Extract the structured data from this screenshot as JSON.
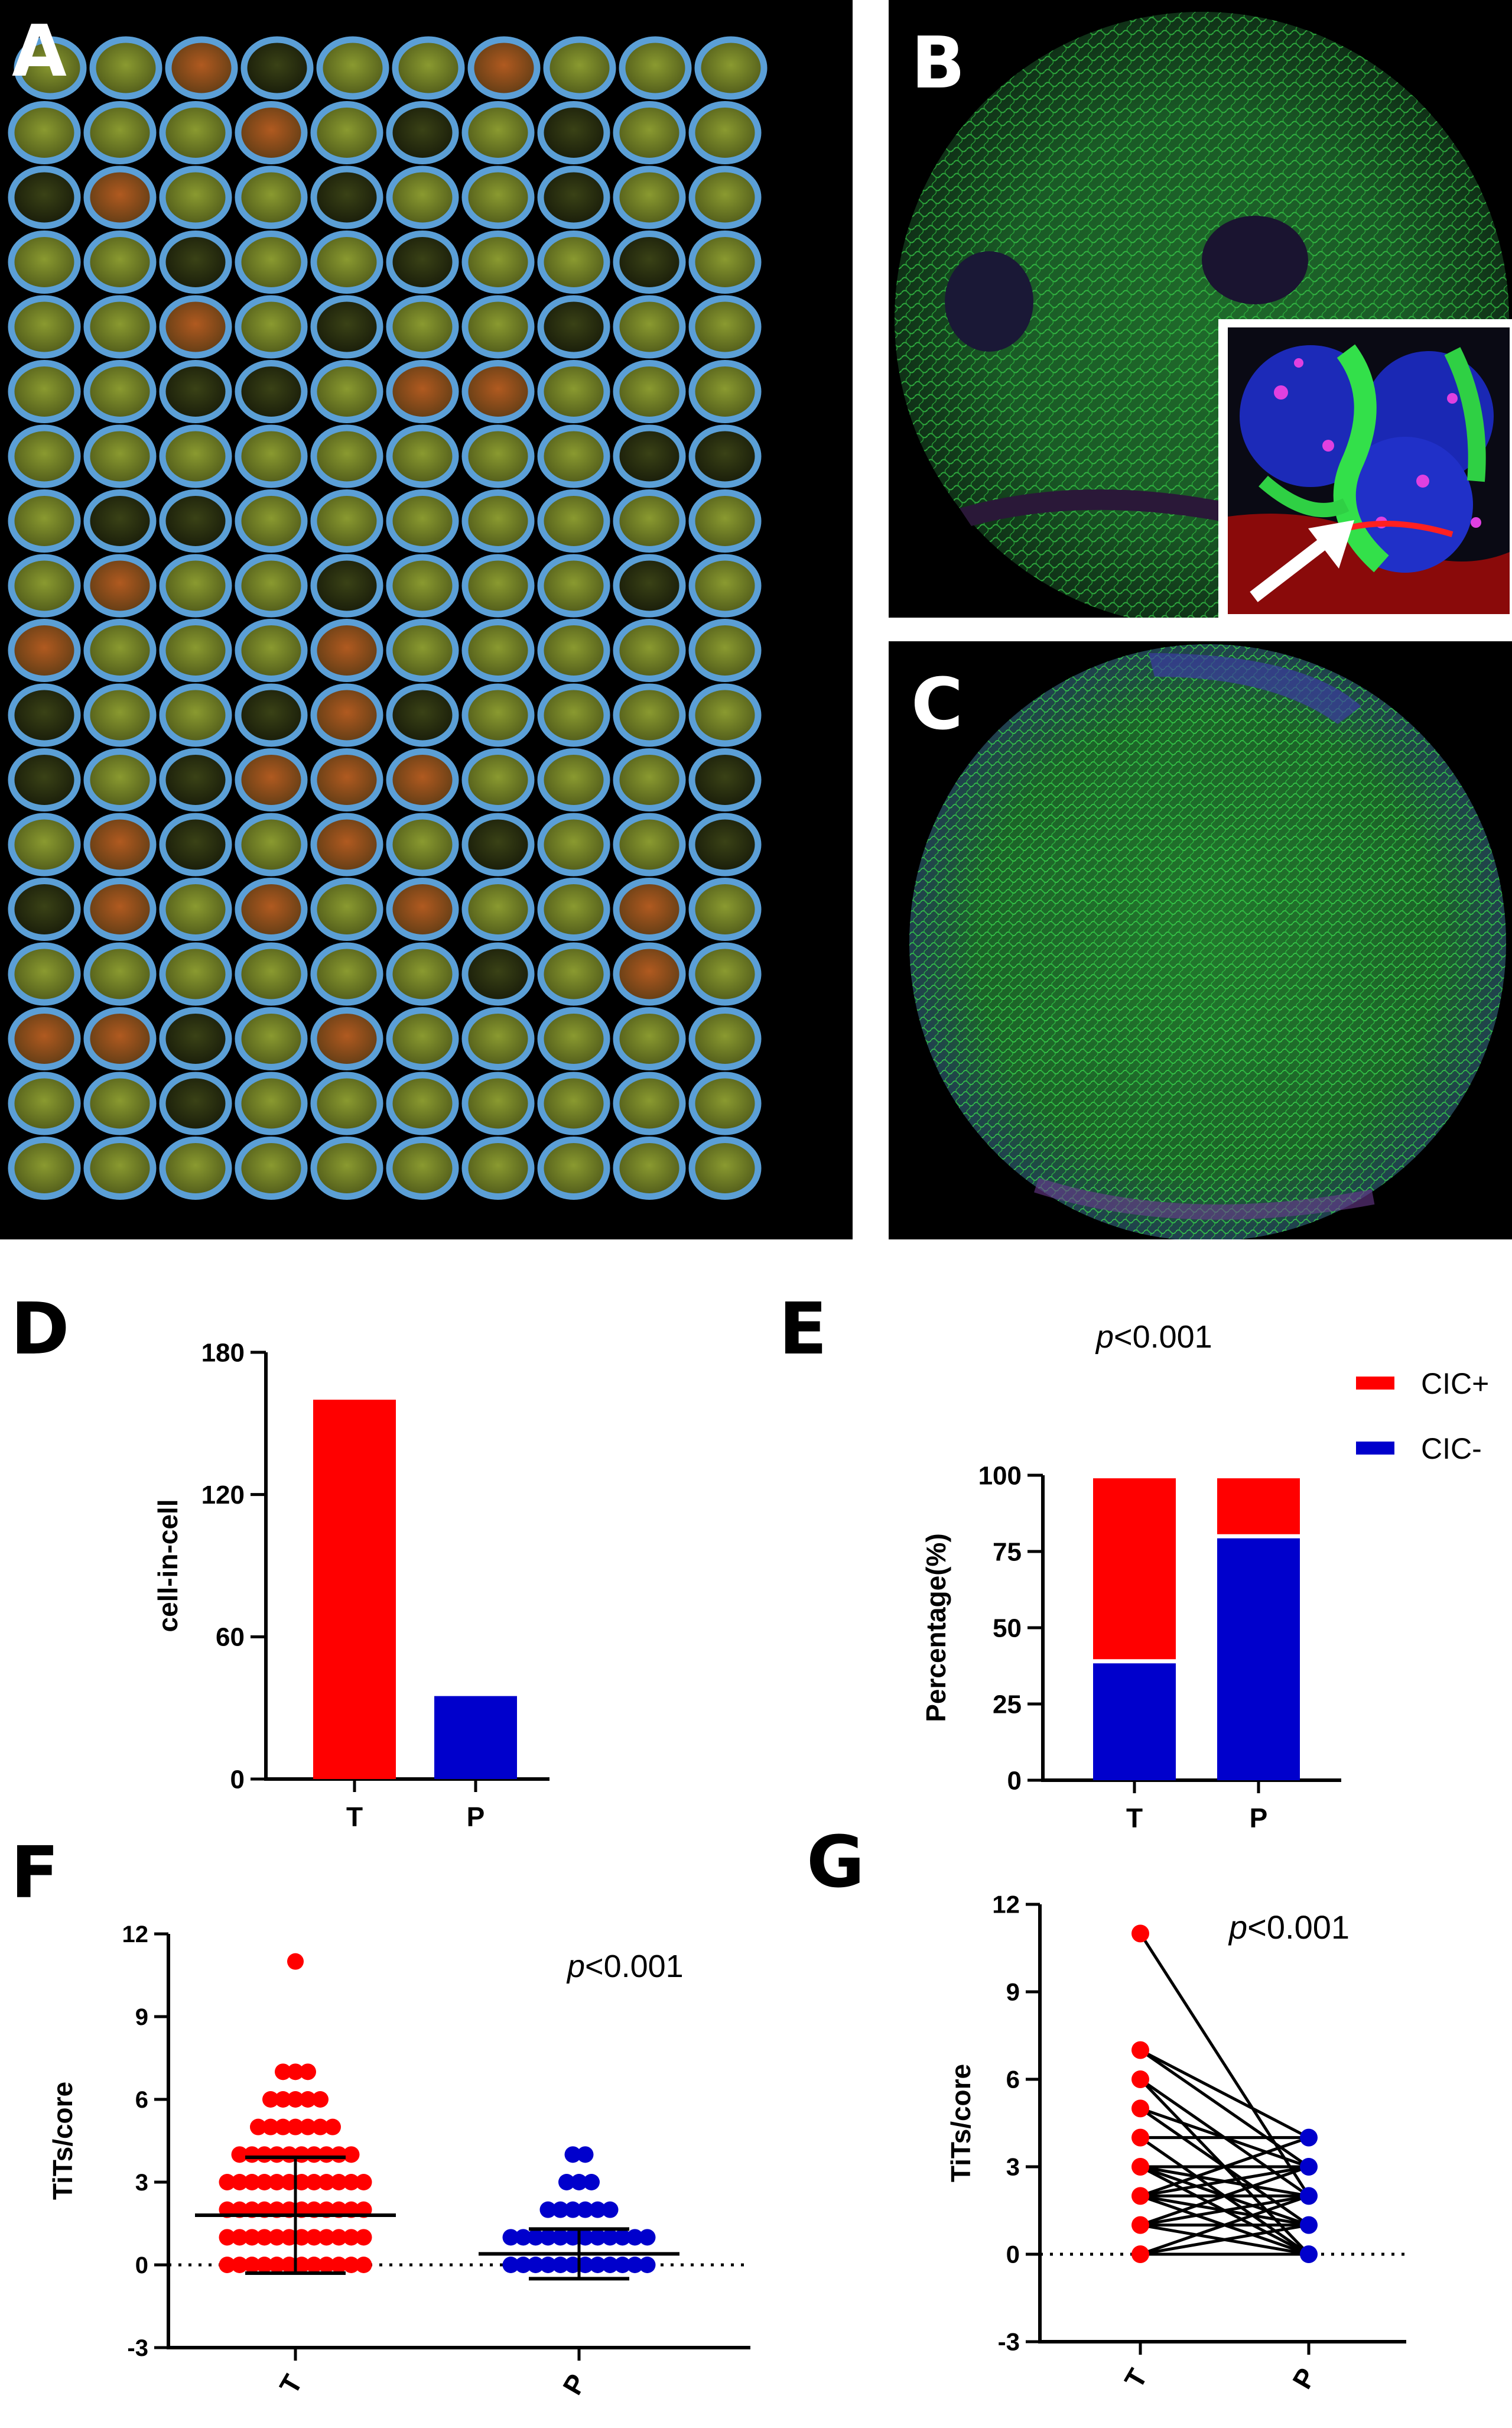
{
  "panels": {
    "a": {
      "letter": "A"
    },
    "b": {
      "letter": "B"
    },
    "c": {
      "letter": "C"
    },
    "d": {
      "letter": "D"
    },
    "e": {
      "letter": "E"
    },
    "f": {
      "letter": "F"
    },
    "g": {
      "letter": "G"
    }
  },
  "tma": {
    "rows": 18,
    "cols": 10,
    "ring_color": "#5b9fd6"
  },
  "chart_data": [
    {
      "panel": "D",
      "type": "bar",
      "categories": [
        "T",
        "P"
      ],
      "values": [
        160,
        35
      ],
      "colors": [
        "#ff0000",
        "#0000cc"
      ],
      "ylabel": "cell-in-cell",
      "ylim": [
        0,
        180
      ],
      "yticks": [
        "0",
        "60",
        "120",
        "180"
      ],
      "grid": false
    },
    {
      "panel": "E",
      "type": "bar",
      "stacked": true,
      "categories": [
        "T",
        "P"
      ],
      "series": [
        {
          "name": "CIC-",
          "values": [
            39,
            80
          ],
          "color": "#0000cc"
        },
        {
          "name": "CIC+",
          "values": [
            60,
            19
          ],
          "color": "#ff0000"
        }
      ],
      "ylabel": "Percentage(%)",
      "ylim": [
        0,
        100
      ],
      "yticks": [
        "0",
        "25",
        "50",
        "75",
        "100"
      ],
      "annotation": {
        "italic": "p",
        "rest": "<0.001"
      },
      "legend": [
        {
          "label": "CIC+",
          "color": "#ff0000"
        },
        {
          "label": "CIC-",
          "color": "#0000cc"
        }
      ],
      "legend_position": "right"
    },
    {
      "panel": "F",
      "type": "scatter",
      "categories": [
        "T",
        "P"
      ],
      "ylabel": "TiTs/core",
      "ylim": [
        -3,
        12
      ],
      "yticks": [
        "-3",
        "0",
        "3",
        "6",
        "9",
        "12"
      ],
      "annotation": {
        "italic": "p",
        "rest": "<0.001"
      },
      "groups": [
        {
          "name": "T",
          "color": "#ff0000",
          "mean": 1.8,
          "sd_low": -0.3,
          "sd_high": 3.9,
          "counts": {
            "0": 60,
            "1": 30,
            "2": 22,
            "3": 16,
            "4": 10,
            "5": 7,
            "6": 5,
            "7": 3,
            "11": 1
          }
        },
        {
          "name": "P",
          "color": "#0000cc",
          "mean": 0.4,
          "sd_low": -0.5,
          "sd_high": 1.3,
          "counts": {
            "0": 120,
            "1": 12,
            "2": 6,
            "3": 3,
            "4": 2
          }
        }
      ]
    },
    {
      "panel": "G",
      "type": "line",
      "paired": true,
      "categories": [
        "T",
        "P"
      ],
      "ylabel": "TiTs/core",
      "ylim": [
        -3,
        12
      ],
      "yticks": [
        "-3",
        "0",
        "3",
        "6",
        "9",
        "12"
      ],
      "annotation": {
        "italic": "p",
        "rest": "<0.001"
      },
      "pairs": [
        [
          11,
          2
        ],
        [
          7,
          4
        ],
        [
          7,
          3
        ],
        [
          6,
          2
        ],
        [
          6,
          0
        ],
        [
          5,
          1
        ],
        [
          5,
          3
        ],
        [
          4,
          4
        ],
        [
          4,
          0
        ],
        [
          3,
          3
        ],
        [
          3,
          1
        ],
        [
          3,
          2
        ],
        [
          2,
          0
        ],
        [
          2,
          4
        ],
        [
          2,
          1
        ],
        [
          2,
          3
        ],
        [
          1,
          0
        ],
        [
          1,
          2
        ],
        [
          1,
          3
        ],
        [
          0,
          1
        ],
        [
          0,
          2
        ],
        [
          0,
          0
        ],
        [
          3,
          0
        ],
        [
          2,
          2
        ],
        [
          1,
          1
        ]
      ],
      "colors": {
        "T": "#ff0000",
        "P": "#0000cc"
      }
    }
  ]
}
